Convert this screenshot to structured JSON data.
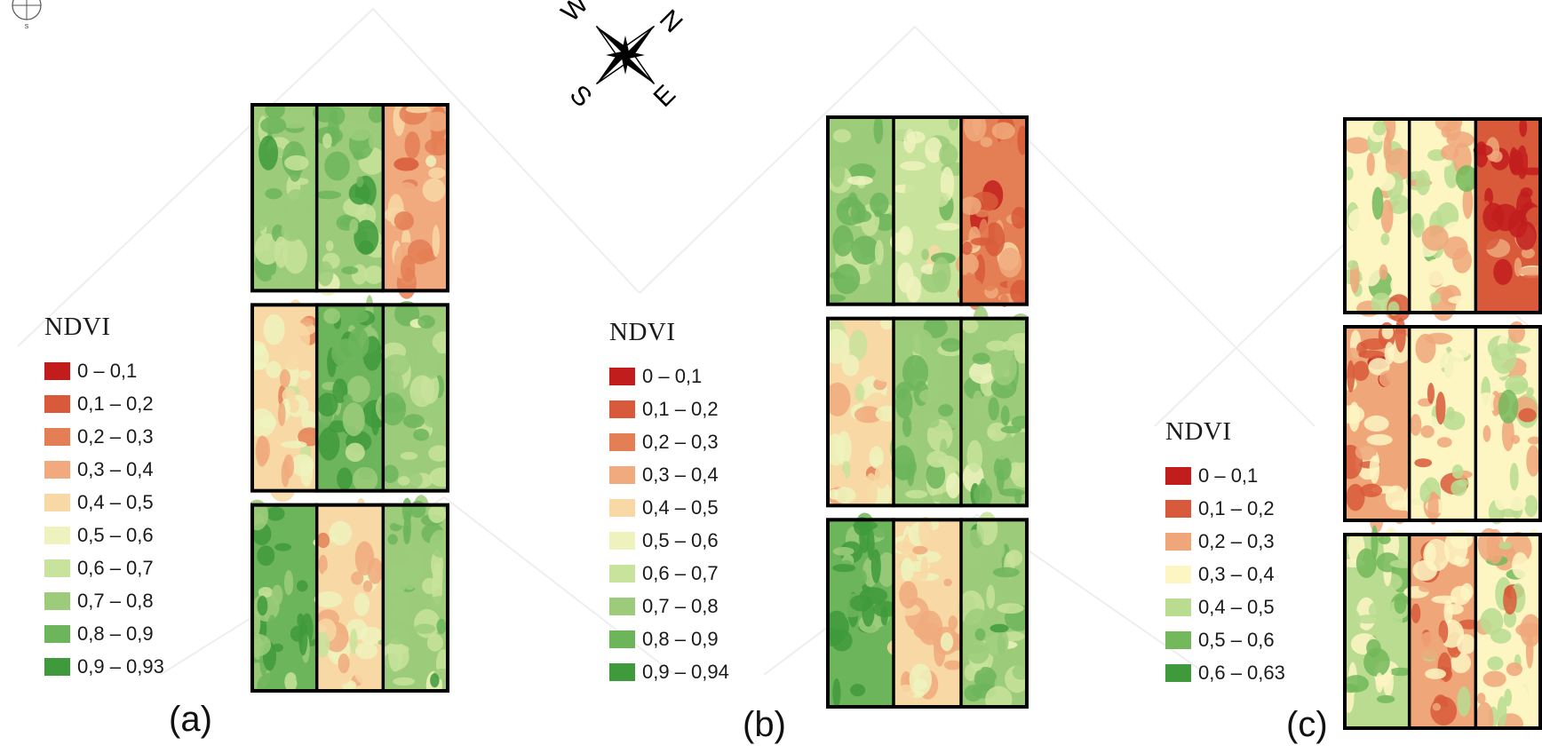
{
  "compass": {
    "n": "N",
    "s": "S",
    "e": "E",
    "w": "W"
  },
  "mini_compass": {
    "s": "S"
  },
  "colors": {
    "frame": "#000000",
    "ndvi_ramp_10": [
      "#c21d1d",
      "#d85a3a",
      "#e47f55",
      "#f0aa7e",
      "#f8d8a4",
      "#eef3bd",
      "#c8e39b",
      "#9ccc7a",
      "#6db55a",
      "#3f9a3c"
    ],
    "ndvi_ramp_7": [
      "#c21d1d",
      "#d85a3a",
      "#efa77a",
      "#fdf6c3",
      "#b9dc91",
      "#73b95b",
      "#3f9a3c"
    ]
  },
  "panels": [
    {
      "label": "(a)",
      "legend": {
        "title": "NDVI",
        "items": [
          {
            "label": "0 – 0,1",
            "color": "#c21d1d"
          },
          {
            "label": "0,1 – 0,2",
            "color": "#d85a3a"
          },
          {
            "label": "0,2 – 0,3",
            "color": "#e47f55"
          },
          {
            "label": "0,3 – 0,4",
            "color": "#f0aa7e"
          },
          {
            "label": "0,4 – 0,5",
            "color": "#f8d8a4"
          },
          {
            "label": "0,5 – 0,6",
            "color": "#eef3bd"
          },
          {
            "label": "0,6 – 0,7",
            "color": "#c8e39b"
          },
          {
            "label": "0,7 – 0,8",
            "color": "#9ccc7a"
          },
          {
            "label": "0,8 – 0,9",
            "color": "#6db55a"
          },
          {
            "label": "0,9 – 0,93",
            "color": "#3f9a3c"
          }
        ]
      },
      "plots": [
        [
          "#9ccc7a",
          "#9ccc7a",
          "#f0aa7e"
        ],
        [
          "#f8d8a4",
          "#6db55a",
          "#9ccc7a"
        ],
        [
          "#6db55a",
          "#f8d8a4",
          "#9ccc7a"
        ]
      ]
    },
    {
      "label": "(b)",
      "legend": {
        "title": "NDVI",
        "items": [
          {
            "label": "0 – 0,1",
            "color": "#c21d1d"
          },
          {
            "label": "0,1 – 0,2",
            "color": "#d85a3a"
          },
          {
            "label": "0,2 – 0,3",
            "color": "#e47f55"
          },
          {
            "label": "0,3 – 0,4",
            "color": "#f0aa7e"
          },
          {
            "label": "0,4 – 0,5",
            "color": "#f8d8a4"
          },
          {
            "label": "0,5 – 0,6",
            "color": "#eef3bd"
          },
          {
            "label": "0,6 – 0,7",
            "color": "#c8e39b"
          },
          {
            "label": "0,7 – 0,8",
            "color": "#9ccc7a"
          },
          {
            "label": "0,8 – 0,9",
            "color": "#6db55a"
          },
          {
            "label": "0,9 – 0,94",
            "color": "#3f9a3c"
          }
        ]
      },
      "plots": [
        [
          "#9ccc7a",
          "#c8e39b",
          "#e47f55"
        ],
        [
          "#f8d8a4",
          "#9ccc7a",
          "#9ccc7a"
        ],
        [
          "#6db55a",
          "#f8d8a4",
          "#9ccc7a"
        ]
      ]
    },
    {
      "label": "(c)",
      "legend": {
        "title": "NDVI",
        "items": [
          {
            "label": "0 – 0,1",
            "color": "#c21d1d"
          },
          {
            "label": "0,1 – 0,2",
            "color": "#d85a3a"
          },
          {
            "label": "0,2 – 0,3",
            "color": "#efa77a"
          },
          {
            "label": "0,3 – 0,4",
            "color": "#fdf6c3"
          },
          {
            "label": "0,4 – 0,5",
            "color": "#b9dc91"
          },
          {
            "label": "0,5 – 0,6",
            "color": "#73b95b"
          },
          {
            "label": "0,6 – 0,63",
            "color": "#3f9a3c"
          }
        ]
      },
      "plots": [
        [
          "#fdf6c3",
          "#fdf6c3",
          "#d85a3a"
        ],
        [
          "#efa77a",
          "#fdf6c3",
          "#fdf6c3"
        ],
        [
          "#b9dc91",
          "#efa77a",
          "#fdf6c3"
        ]
      ]
    }
  ]
}
